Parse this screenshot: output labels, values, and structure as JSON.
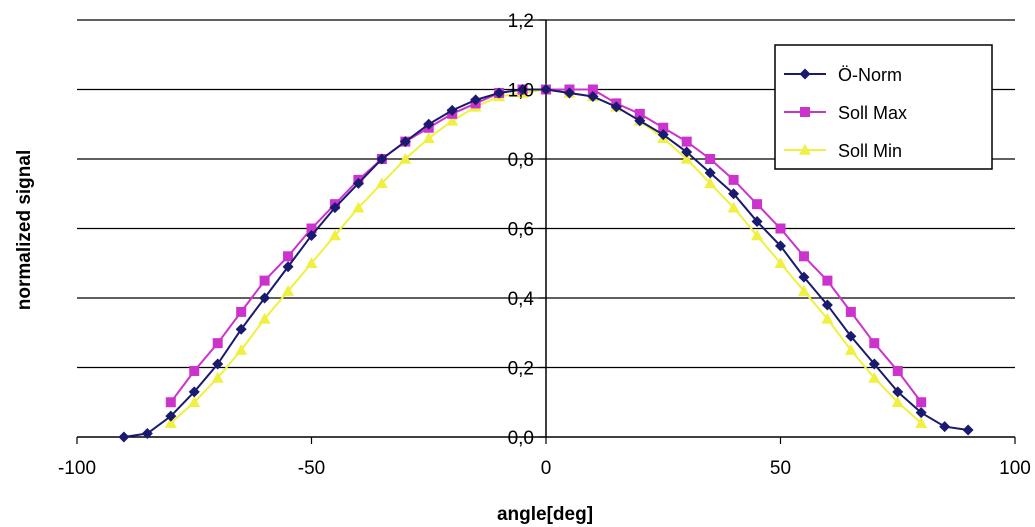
{
  "chart_data": {
    "type": "line",
    "xlabel": "angle[deg]",
    "ylabel": "normalized signal",
    "xlim": [
      -100,
      100
    ],
    "ylim": [
      0,
      1.2
    ],
    "x_ticks": [
      -100,
      -50,
      0,
      50,
      100
    ],
    "y_ticks": [
      0,
      0.2,
      0.4,
      0.6,
      0.8,
      1.0,
      1.2
    ],
    "x_tick_labels": [
      "-100",
      "-50",
      "0",
      "50",
      "100"
    ],
    "y_tick_labels": [
      "0,0",
      "0,2",
      "0,4",
      "0,6",
      "0,8",
      "1,0",
      "1,2"
    ],
    "grid": "horizontal",
    "legend_position": "top-right",
    "series": [
      {
        "name": "Ö-Norm",
        "color": "#1a1a6e",
        "marker": "diamond",
        "x": [
          -90,
          -85,
          -80,
          -75,
          -70,
          -65,
          -60,
          -55,
          -50,
          -45,
          -40,
          -35,
          -30,
          -25,
          -20,
          -15,
          -10,
          -5,
          0,
          5,
          10,
          15,
          20,
          25,
          30,
          35,
          40,
          45,
          50,
          55,
          60,
          65,
          70,
          75,
          80,
          85,
          90
        ],
        "y": [
          0.0,
          0.01,
          0.06,
          0.13,
          0.21,
          0.31,
          0.4,
          0.49,
          0.58,
          0.66,
          0.73,
          0.8,
          0.85,
          0.9,
          0.94,
          0.97,
          0.99,
          1.0,
          1.0,
          0.99,
          0.98,
          0.95,
          0.91,
          0.87,
          0.82,
          0.76,
          0.7,
          0.62,
          0.55,
          0.46,
          0.38,
          0.29,
          0.21,
          0.13,
          0.07,
          0.03,
          0.02
        ]
      },
      {
        "name": "Soll Max",
        "color": "#cc33cc",
        "marker": "square",
        "x": [
          -80,
          -75,
          -70,
          -65,
          -60,
          -55,
          -50,
          -45,
          -40,
          -35,
          -30,
          -25,
          -20,
          -15,
          -10,
          -5,
          0,
          5,
          10,
          15,
          20,
          25,
          30,
          35,
          40,
          45,
          50,
          55,
          60,
          65,
          70,
          75,
          80
        ],
        "y": [
          0.1,
          0.19,
          0.27,
          0.36,
          0.45,
          0.52,
          0.6,
          0.67,
          0.74,
          0.8,
          0.85,
          0.89,
          0.93,
          0.96,
          0.99,
          1.0,
          1.0,
          1.0,
          1.0,
          0.96,
          0.93,
          0.89,
          0.85,
          0.8,
          0.74,
          0.67,
          0.6,
          0.52,
          0.45,
          0.36,
          0.27,
          0.19,
          0.1
        ]
      },
      {
        "name": "Soll Min",
        "color": "#f0f040",
        "marker": "triangle",
        "x": [
          -80,
          -75,
          -70,
          -65,
          -60,
          -55,
          -50,
          -45,
          -40,
          -35,
          -30,
          -25,
          -20,
          -15,
          -10,
          -5,
          0,
          5,
          10,
          15,
          20,
          25,
          30,
          35,
          40,
          45,
          50,
          55,
          60,
          65,
          70,
          75,
          80
        ],
        "y": [
          0.04,
          0.1,
          0.17,
          0.25,
          0.34,
          0.42,
          0.5,
          0.58,
          0.66,
          0.73,
          0.8,
          0.86,
          0.91,
          0.95,
          0.98,
          0.99,
          1.0,
          0.99,
          0.98,
          0.95,
          0.91,
          0.86,
          0.8,
          0.73,
          0.66,
          0.58,
          0.5,
          0.42,
          0.34,
          0.25,
          0.17,
          0.1,
          0.04
        ]
      }
    ]
  }
}
